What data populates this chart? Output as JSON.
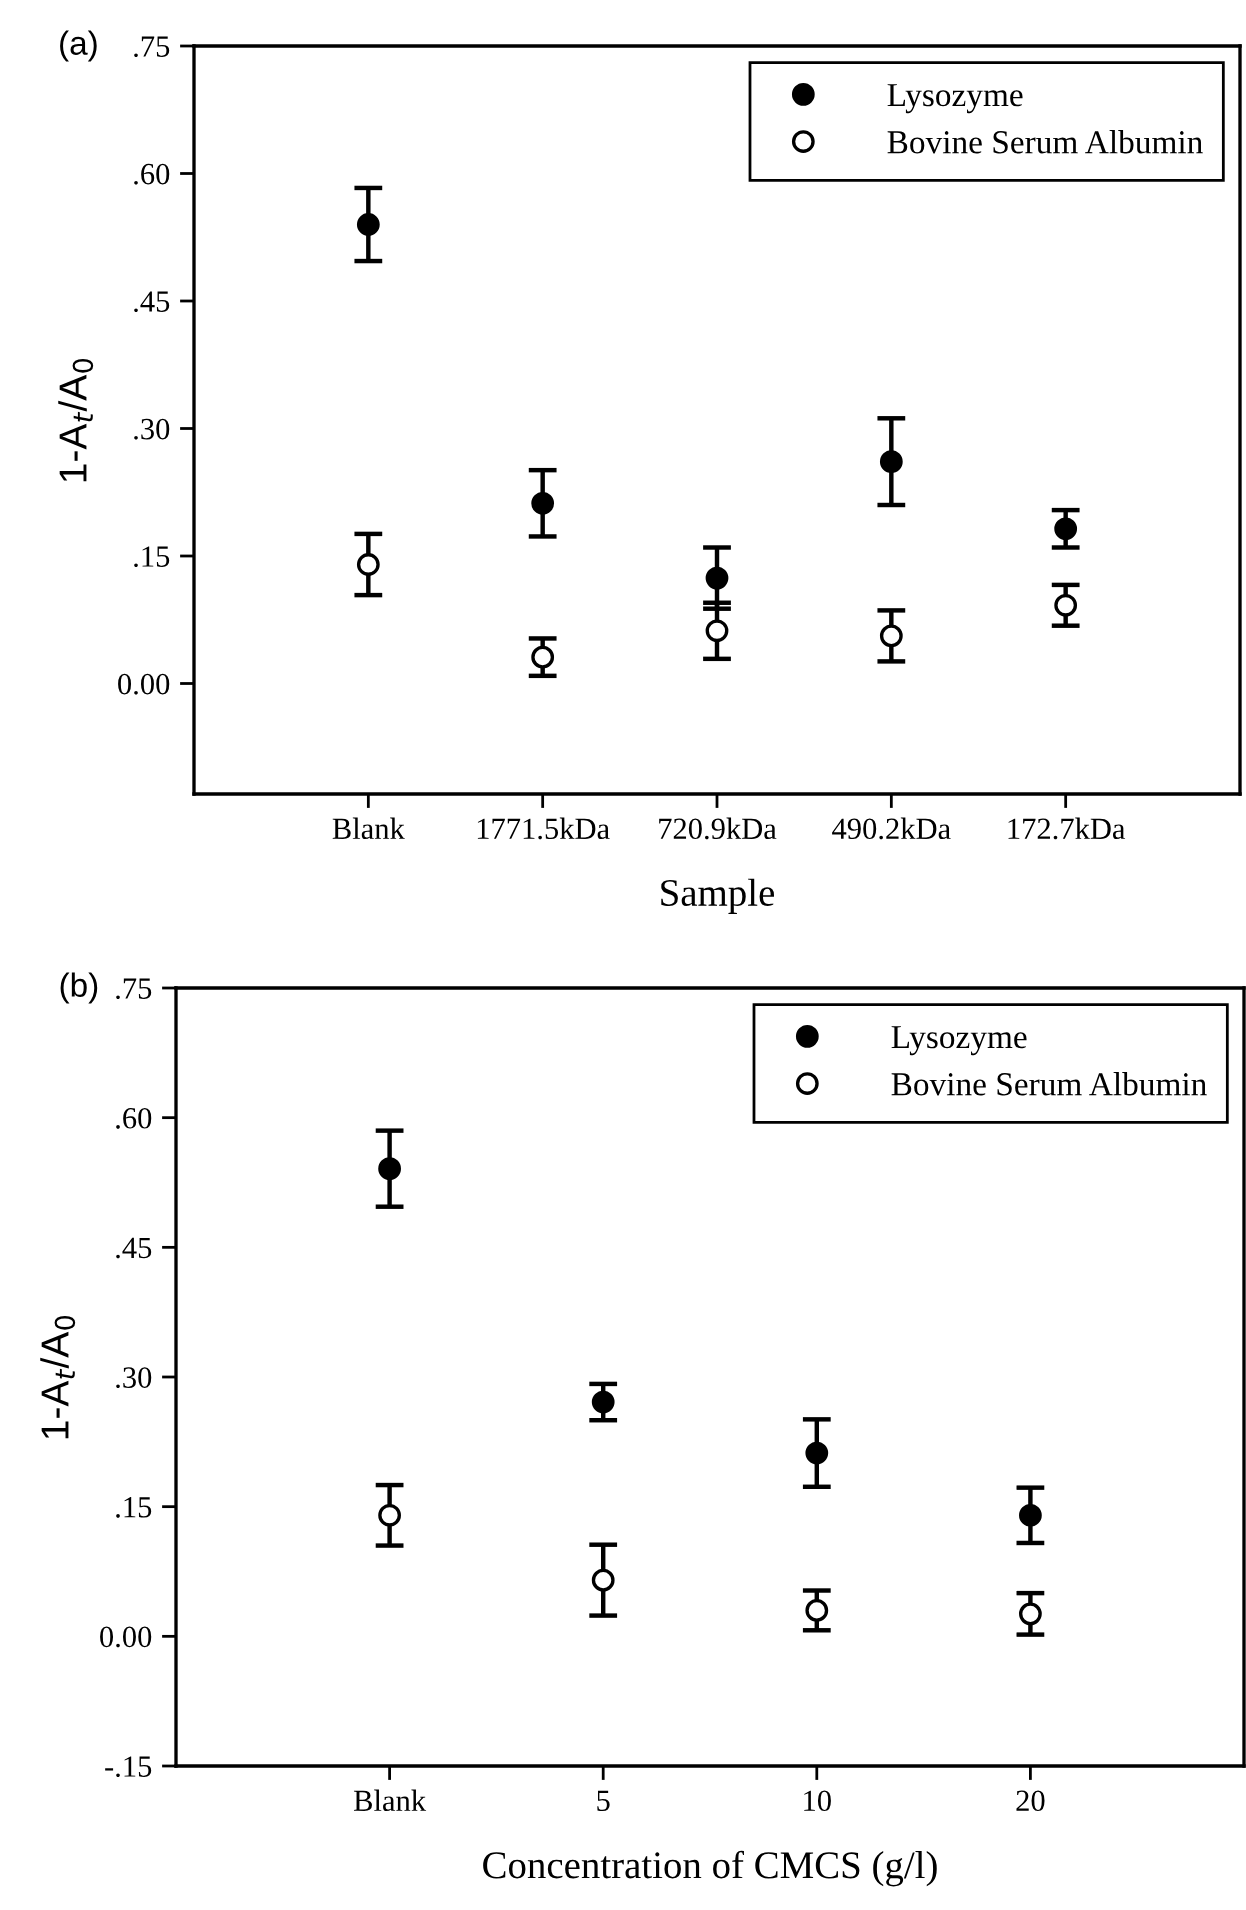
{
  "chart_data": [
    {
      "type": "scatter",
      "title": "(a)",
      "xlabel": "Sample",
      "ylabel": "1-A$_{t}$/A$_{0}$",
      "categories": [
        "Blank",
        "1771.5kDa",
        "720.9kDa",
        "490.2kDa",
        "172.7kDa"
      ],
      "series": [
        {
          "name": "Lysozyme",
          "color": "#000000",
          "values": [
            0.54,
            0.212,
            0.124,
            0.261,
            0.182
          ],
          "errors": [
            0.043,
            0.039,
            0.036,
            0.051,
            0.022
          ]
        },
        {
          "name": "Bovine Serum Albumin",
          "color": "#ffffff",
          "values": [
            0.14,
            0.031,
            0.062,
            0.056,
            0.092
          ],
          "errors": [
            0.036,
            0.022,
            0.033,
            0.03,
            0.024
          ]
        }
      ],
      "ylim": [
        -0.13,
        0.75
      ],
      "yticks": [
        {
          "value": 0,
          "label": "0.00"
        },
        {
          "value": 0.15,
          "label": ".15"
        },
        {
          "value": 0.3,
          "label": ".30"
        },
        {
          "value": 0.45,
          "label": ".45"
        },
        {
          "value": 0.6,
          "label": ".60"
        },
        {
          "value": 0.75,
          "label": ".75"
        }
      ],
      "marker": "circle",
      "legend": "top right",
      "grid": false
    },
    {
      "type": "scatter",
      "title": "(b)",
      "xlabel": "Concentration of CMCS (g/l)",
      "ylabel": "1-A$_{t}$/A$_{0}$",
      "categories": [
        "Blank",
        "5",
        "10",
        "20"
      ],
      "series": [
        {
          "name": "Lysozyme",
          "color": "#000000",
          "values": [
            0.541,
            0.271,
            0.212,
            0.14
          ],
          "errors": [
            0.044,
            0.021,
            0.039,
            0.032
          ]
        },
        {
          "name": "Bovine Serum Albumin",
          "color": "#ffffff",
          "values": [
            0.14,
            0.065,
            0.03,
            0.026
          ],
          "errors": [
            0.035,
            0.041,
            0.023,
            0.024
          ]
        }
      ],
      "ylim": [
        -0.15,
        0.75
      ],
      "yticks": [
        {
          "value": -0.15,
          "label": "-.15"
        },
        {
          "value": 0,
          "label": "0.00"
        },
        {
          "value": 0.15,
          "label": ".15"
        },
        {
          "value": 0.3,
          "label": ".30"
        },
        {
          "value": 0.45,
          "label": ".45"
        },
        {
          "value": 0.6,
          "label": ".60"
        },
        {
          "value": 0.75,
          "label": ".75"
        }
      ],
      "marker": "circle",
      "legend": "top right",
      "grid": false
    }
  ]
}
